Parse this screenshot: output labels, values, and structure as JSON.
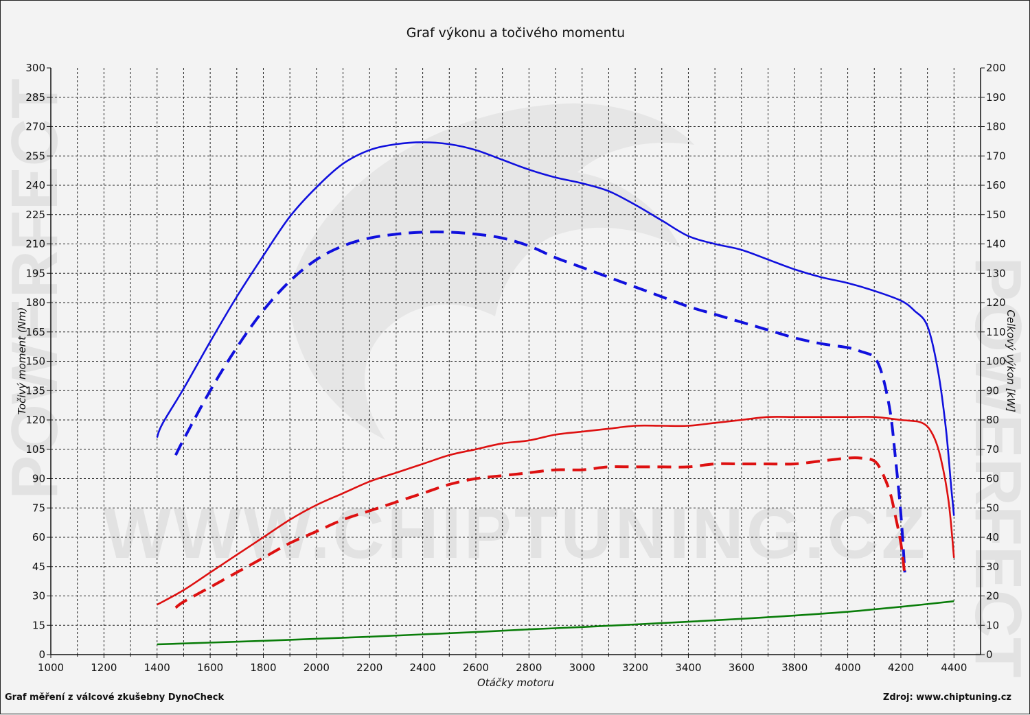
{
  "chart_data": {
    "type": "line",
    "title": "Graf výkonu a točivého momentu",
    "xlabel": "Otáčky motoru",
    "ylabel_left": "Točivý moment (Nm)",
    "ylabel_right": "Celkový výkon [kW]",
    "xlim": [
      1000,
      4500
    ],
    "ylim_left": [
      0,
      300
    ],
    "ylim_right": [
      0,
      200
    ],
    "x_ticks": [
      1000,
      1200,
      1400,
      1600,
      1800,
      2000,
      2200,
      2400,
      2600,
      2800,
      3000,
      3200,
      3400,
      3600,
      3800,
      4000,
      4200,
      4400
    ],
    "y_ticks_left": [
      0,
      15,
      30,
      45,
      60,
      75,
      90,
      105,
      120,
      135,
      150,
      165,
      180,
      195,
      210,
      225,
      240,
      255,
      270,
      285,
      300
    ],
    "y_ticks_right": [
      0,
      10,
      20,
      30,
      40,
      50,
      60,
      70,
      80,
      90,
      100,
      110,
      120,
      130,
      140,
      150,
      160,
      170,
      180,
      190,
      200
    ],
    "grid": true,
    "series": [
      {
        "axis": "left",
        "color": "#1010dd",
        "dash": false,
        "x": [
          1400,
          1420,
          1500,
          1600,
          1700,
          1800,
          1900,
          2000,
          2100,
          2200,
          2300,
          2400,
          2500,
          2600,
          2700,
          2800,
          2900,
          3000,
          3100,
          3200,
          3300,
          3400,
          3500,
          3600,
          3700,
          3800,
          3900,
          4000,
          4100,
          4200,
          4250,
          4300,
          4340,
          4370,
          4390,
          4400
        ],
        "y": [
          111,
          118,
          136,
          160,
          183,
          204,
          224,
          239,
          251,
          258,
          261,
          262,
          261,
          258,
          253,
          248,
          244,
          241,
          237,
          230,
          222,
          214,
          210,
          207,
          202,
          197,
          193,
          190,
          186,
          181,
          176,
          168,
          145,
          115,
          85,
          71
        ]
      },
      {
        "axis": "left",
        "color": "#1010dd",
        "dash": true,
        "x": [
          1470,
          1500,
          1600,
          1700,
          1800,
          1900,
          2000,
          2100,
          2200,
          2300,
          2400,
          2500,
          2600,
          2700,
          2800,
          2900,
          3000,
          3100,
          3200,
          3300,
          3400,
          3500,
          3600,
          3700,
          3800,
          3900,
          4000,
          4050,
          4100,
          4130,
          4160,
          4180,
          4200,
          4215
        ],
        "y": [
          102,
          110,
          135,
          157,
          176,
          191,
          202,
          209,
          213,
          215,
          216,
          216,
          215,
          213,
          209,
          203,
          198,
          193,
          188,
          183,
          178,
          174,
          170,
          166,
          162,
          159,
          157,
          155,
          152,
          143,
          124,
          100,
          72,
          42
        ]
      },
      {
        "axis": "right",
        "color": "#dd1010",
        "dash": false,
        "x": [
          1400,
          1500,
          1600,
          1700,
          1800,
          1900,
          2000,
          2100,
          2200,
          2300,
          2400,
          2500,
          2600,
          2700,
          2800,
          2900,
          3000,
          3100,
          3200,
          3300,
          3400,
          3500,
          3600,
          3700,
          3800,
          3900,
          4000,
          4100,
          4200,
          4280,
          4320,
          4350,
          4380,
          4400
        ],
        "y": [
          17,
          22,
          28,
          34,
          40,
          46,
          51,
          55,
          59,
          62,
          65,
          68,
          70,
          72,
          73,
          75,
          76,
          77,
          78,
          78,
          78,
          79,
          80,
          81,
          81,
          81,
          81,
          81,
          80,
          79,
          75,
          67,
          52,
          33
        ]
      },
      {
        "axis": "right",
        "color": "#dd1010",
        "dash": true,
        "x": [
          1470,
          1500,
          1600,
          1700,
          1800,
          1900,
          2000,
          2100,
          2200,
          2300,
          2400,
          2500,
          2600,
          2700,
          2800,
          2900,
          3000,
          3100,
          3200,
          3300,
          3400,
          3500,
          3600,
          3700,
          3800,
          3900,
          4000,
          4050,
          4100,
          4130,
          4160,
          4180,
          4200,
          4215
        ],
        "y": [
          16,
          18,
          23,
          28,
          33,
          38,
          42,
          46,
          49,
          52,
          55,
          58,
          60,
          61,
          62,
          63,
          63,
          64,
          64,
          64,
          64,
          65,
          65,
          65,
          65,
          66,
          67,
          67,
          66,
          62,
          55,
          47,
          38,
          27
        ]
      },
      {
        "axis": "right",
        "color": "#0a7d0a",
        "dash": false,
        "x": [
          1400,
          1600,
          1800,
          2000,
          2200,
          2400,
          2600,
          2800,
          3000,
          3200,
          3400,
          3600,
          3800,
          4000,
          4200,
          4400
        ],
        "y": [
          3.5,
          4.1,
          4.7,
          5.4,
          6.1,
          6.9,
          7.7,
          8.6,
          9.4,
          10.3,
          11.2,
          12.2,
          13.3,
          14.6,
          16.3,
          18.2
        ]
      }
    ]
  },
  "watermark": {
    "text": "WWW.CHIPTUNING.CZ",
    "side_text": "POWERFECT"
  },
  "footer": {
    "left": "Graf měření z válcové zkušebny DynoCheck",
    "right": "Zdroj: www.chiptuning.cz"
  }
}
